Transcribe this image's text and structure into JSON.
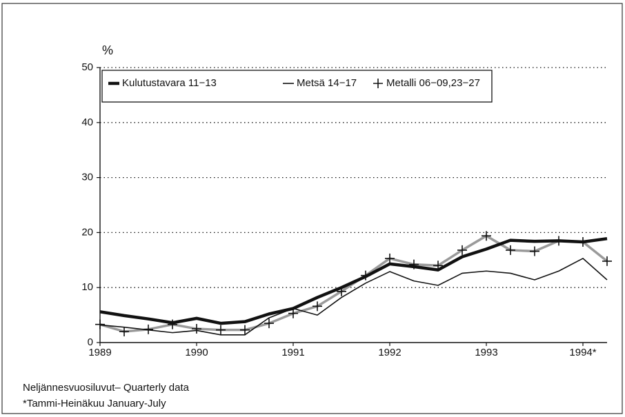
{
  "chart_data": {
    "type": "line",
    "ylabel": "%",
    "x": [
      1989,
      1989.25,
      1989.5,
      1989.75,
      1990,
      1990.25,
      1990.5,
      1990.75,
      1991,
      1991.25,
      1991.5,
      1991.75,
      1992,
      1992.25,
      1992.5,
      1992.75,
      1993,
      1993.25,
      1993.5,
      1993.75,
      1994,
      1994.25
    ],
    "series": [
      {
        "name": "Kulutustavara 11−13",
        "color": "#111111",
        "width": 4.5,
        "marker": "none",
        "values": [
          5.6,
          4.9,
          4.3,
          3.6,
          4.4,
          3.5,
          3.8,
          5.2,
          6.2,
          8.2,
          10,
          12,
          14.3,
          13.8,
          13.2,
          15.6,
          17,
          18.6,
          18.4,
          18.5,
          18.3,
          18.9
        ]
      },
      {
        "name": "Metsä 14−17",
        "color": "#111111",
        "width": 1.6,
        "marker": "none",
        "values": [
          3.2,
          2.8,
          2.3,
          1.8,
          2.2,
          1.4,
          1.4,
          4.5,
          6.2,
          5,
          8.2,
          10.8,
          12.9,
          11.2,
          10.4,
          12.6,
          13,
          12.6,
          11.4,
          13,
          15.3,
          11.4
        ]
      },
      {
        "name": "Metalli 06−09,23−27",
        "color": "#9a9a9a",
        "width": 3.5,
        "marker": "plus",
        "values": [
          3.3,
          2,
          2.4,
          3.3,
          2.5,
          2.3,
          2.3,
          3.5,
          5.3,
          6.6,
          9.3,
          12.2,
          15.3,
          14.2,
          14,
          16.8,
          19.4,
          16.8,
          16.6,
          18.5,
          18.3,
          14.8
        ]
      }
    ],
    "xlim": [
      1989,
      1994.25
    ],
    "xticks": [
      1989,
      1990,
      1991,
      1992,
      1993,
      {
        "value": 1994,
        "label": "1994*"
      }
    ],
    "ylim": [
      0,
      50
    ],
    "yticks": [
      0,
      10,
      20,
      30,
      40,
      50
    ],
    "grid": true,
    "notes": [
      "Neljännesvuosiluvut– Quarterly data",
      "*Tammi-Heinäkuu January-July"
    ]
  }
}
